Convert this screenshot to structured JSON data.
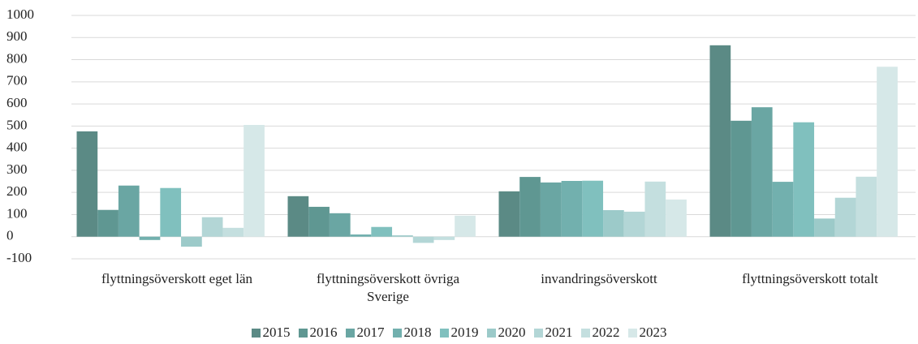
{
  "chart_data": {
    "type": "bar",
    "categories": [
      "flyttningsöverskott eget län",
      "flyttningsöverskott övriga Sverige",
      "invandringsöverskott",
      "flyttningsöverskott totalt"
    ],
    "series": [
      {
        "name": "2015",
        "color": "#5b8a85",
        "values": [
          476,
          183,
          205,
          865
        ]
      },
      {
        "name": "2016",
        "color": "#5f9792",
        "values": [
          121,
          135,
          270,
          524
        ]
      },
      {
        "name": "2017",
        "color": "#6aa6a3",
        "values": [
          231,
          106,
          245,
          585
        ]
      },
      {
        "name": "2018",
        "color": "#72b0ae",
        "values": [
          -15,
          10,
          252,
          248
        ]
      },
      {
        "name": "2019",
        "color": "#80c0be",
        "values": [
          220,
          44,
          253,
          517
        ]
      },
      {
        "name": "2020",
        "color": "#9ccac9",
        "values": [
          -45,
          6,
          120,
          82
        ]
      },
      {
        "name": "2021",
        "color": "#b3d6d6",
        "values": [
          88,
          -28,
          113,
          176
        ]
      },
      {
        "name": "2022",
        "color": "#c4dfdf",
        "values": [
          40,
          -15,
          249,
          271
        ]
      },
      {
        "name": "2023",
        "color": "#d6e8e8",
        "values": [
          505,
          95,
          168,
          768
        ]
      }
    ],
    "ylim": [
      -100,
      1000
    ],
    "yticks": [
      -100,
      0,
      100,
      200,
      300,
      400,
      500,
      600,
      700,
      800,
      900,
      1000
    ],
    "grid": true
  }
}
